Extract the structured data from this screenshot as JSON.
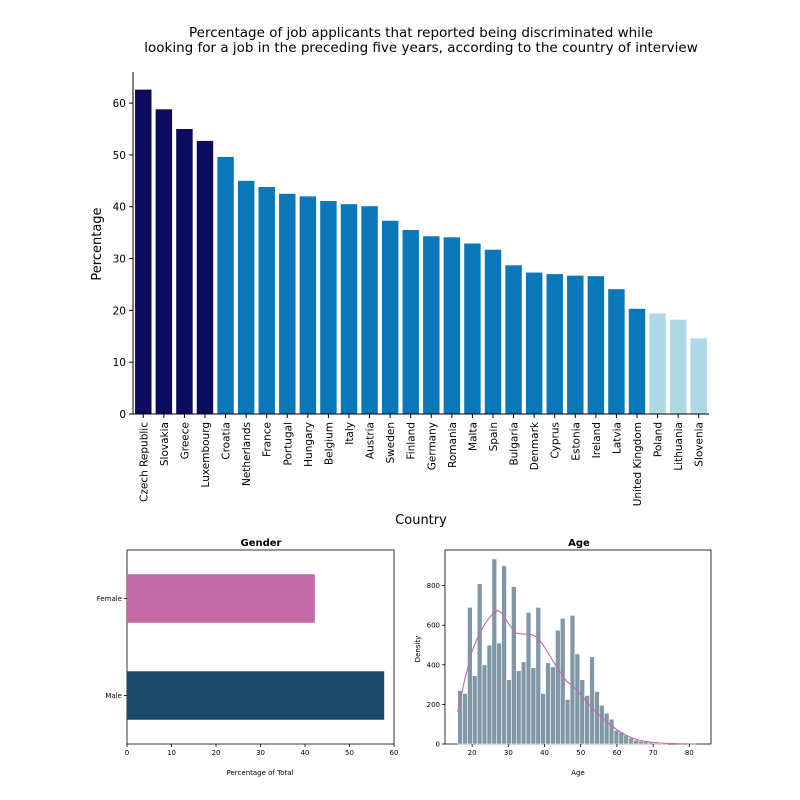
{
  "chart_data": [
    {
      "type": "bar",
      "title": "Percentage of job applicants that reported being discriminated while looking for a job in the preceding five years, according to the country of interview",
      "title_lines": [
        "Percentage of job applicants that reported being discriminated while",
        "looking for a job in the preceding five years, according to the country of interview"
      ],
      "xlabel": "Country",
      "ylabel": "Percentage",
      "ylim": [
        0,
        66
      ],
      "yticks": [
        0,
        10,
        20,
        30,
        40,
        50,
        60
      ],
      "categories": [
        "Czech Republic",
        "Slovakia",
        "Greece",
        "Luxembourg",
        "Croatia",
        "Netherlands",
        "France",
        "Portugal",
        "Hungary",
        "Belgium",
        "Italy",
        "Austria",
        "Sweden",
        "Finland",
        "Germany",
        "Romania",
        "Malta",
        "Spain",
        "Bulgaria",
        "Denmark",
        "Cyprus",
        "Estonia",
        "Ireland",
        "Latvia",
        "United Kingdom",
        "Poland",
        "Lithuania",
        "Slovenia"
      ],
      "values": [
        62.6,
        58.8,
        55.0,
        52.7,
        49.6,
        45.0,
        43.8,
        42.5,
        42.0,
        41.1,
        40.5,
        40.1,
        37.3,
        35.5,
        34.3,
        34.1,
        32.9,
        31.7,
        28.7,
        27.3,
        27.0,
        26.7,
        26.6,
        24.1,
        20.3,
        19.4,
        18.2,
        14.6
      ],
      "bar_groups": [
        0,
        0,
        0,
        0,
        1,
        1,
        1,
        1,
        1,
        1,
        1,
        1,
        1,
        1,
        1,
        1,
        1,
        1,
        1,
        1,
        1,
        1,
        1,
        1,
        1,
        2,
        2,
        2
      ],
      "group_colors": [
        "#0b0c5d",
        "#0a78b8",
        "#add8e6"
      ],
      "grid": false
    },
    {
      "type": "bar",
      "orientation": "horizontal",
      "title": "Gender",
      "xlabel": "Percentage of Total",
      "ylabel": "",
      "xlim": [
        0,
        60
      ],
      "xticks": [
        0,
        10,
        20,
        30,
        40,
        50,
        60
      ],
      "categories": [
        "Female",
        "Male"
      ],
      "values": [
        42.2,
        57.8
      ],
      "colors": [
        "#c36aa7",
        "#1d4a6b"
      ],
      "grid": false
    },
    {
      "type": "bar",
      "subtype": "histogram_with_kde",
      "title": "Age",
      "xlabel": "Age",
      "ylabel": "Density",
      "xlim": [
        12.5,
        86
      ],
      "ylim": [
        0,
        980
      ],
      "xticks": [
        20,
        30,
        40,
        50,
        60,
        70,
        80
      ],
      "yticks": [
        0,
        200,
        400,
        600,
        800
      ],
      "bin_start": 16,
      "bin_width": 1.35,
      "counts": [
        270,
        255,
        690,
        345,
        810,
        400,
        500,
        935,
        510,
        900,
        325,
        795,
        370,
        415,
        665,
        385,
        690,
        255,
        410,
        390,
        575,
        635,
        225,
        650,
        455,
        325,
        245,
        440,
        265,
        195,
        155,
        125,
        70,
        60,
        45,
        30,
        20,
        15,
        12,
        8,
        5,
        3,
        2
      ],
      "bar_color": "#8197a6",
      "kde_x": [
        16,
        18,
        20,
        22,
        24,
        26,
        27,
        28,
        30,
        32,
        34,
        36,
        38,
        40,
        42,
        44,
        46,
        48,
        50,
        52,
        54,
        56,
        58,
        60,
        62,
        64,
        66,
        68,
        70,
        74,
        78,
        82
      ],
      "kde_y": [
        160,
        330,
        470,
        560,
        620,
        665,
        675,
        665,
        610,
        560,
        555,
        555,
        540,
        490,
        430,
        370,
        320,
        290,
        250,
        205,
        165,
        130,
        100,
        72,
        50,
        32,
        20,
        12,
        7,
        3,
        1,
        0
      ],
      "kde_color": "#c36aa7",
      "grid": false
    }
  ]
}
